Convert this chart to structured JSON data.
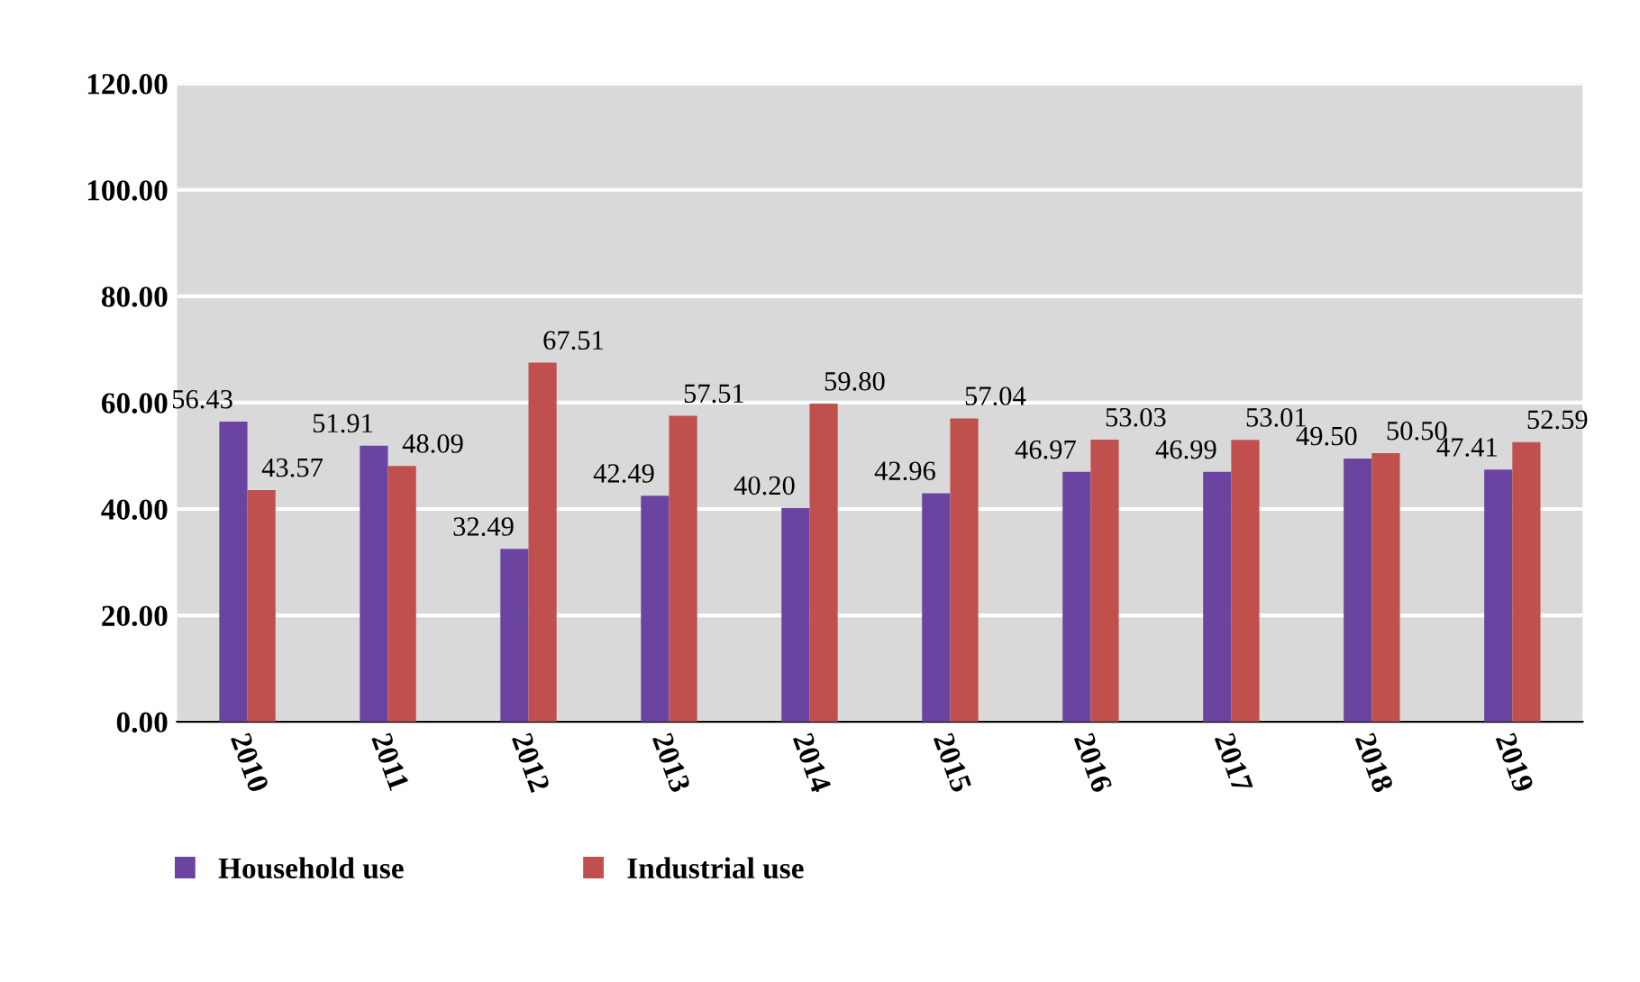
{
  "chart_data": {
    "type": "bar",
    "categories": [
      "2010",
      "2011",
      "2012",
      "2013",
      "2014",
      "2015",
      "2016",
      "2017",
      "2018",
      "2019"
    ],
    "series": [
      {
        "name": "Household use",
        "color": "#6a44a0",
        "values": [
          56.43,
          51.91,
          32.49,
          42.49,
          40.2,
          42.96,
          46.97,
          46.99,
          49.5,
          47.41
        ],
        "value_labels": [
          "56.43",
          "51.91",
          "32.49",
          "42.49",
          "40.20",
          "42.96",
          "46.97",
          "46.99",
          "49.50",
          "47.41"
        ]
      },
      {
        "name": "Industrial use",
        "color": "#c0504d",
        "values": [
          43.57,
          48.09,
          67.51,
          57.51,
          59.8,
          57.04,
          53.03,
          53.01,
          50.5,
          52.59
        ],
        "value_labels": [
          "43.57",
          "48.09",
          "67.51",
          "57.51",
          "59.80",
          "57.04",
          "53.03",
          "53.01",
          "50.50",
          "52.59"
        ]
      }
    ],
    "ylim": [
      0,
      120
    ],
    "yticks": [
      {
        "value": 0,
        "label": "0.00"
      },
      {
        "value": 20,
        "label": "20.00"
      },
      {
        "value": 40,
        "label": "40.00"
      },
      {
        "value": 60,
        "label": "60.00"
      },
      {
        "value": 80,
        "label": "80.00"
      },
      {
        "value": 100,
        "label": "100.00"
      },
      {
        "value": 120,
        "label": "120.00"
      }
    ],
    "grid": "y",
    "legend": "bottom left"
  }
}
